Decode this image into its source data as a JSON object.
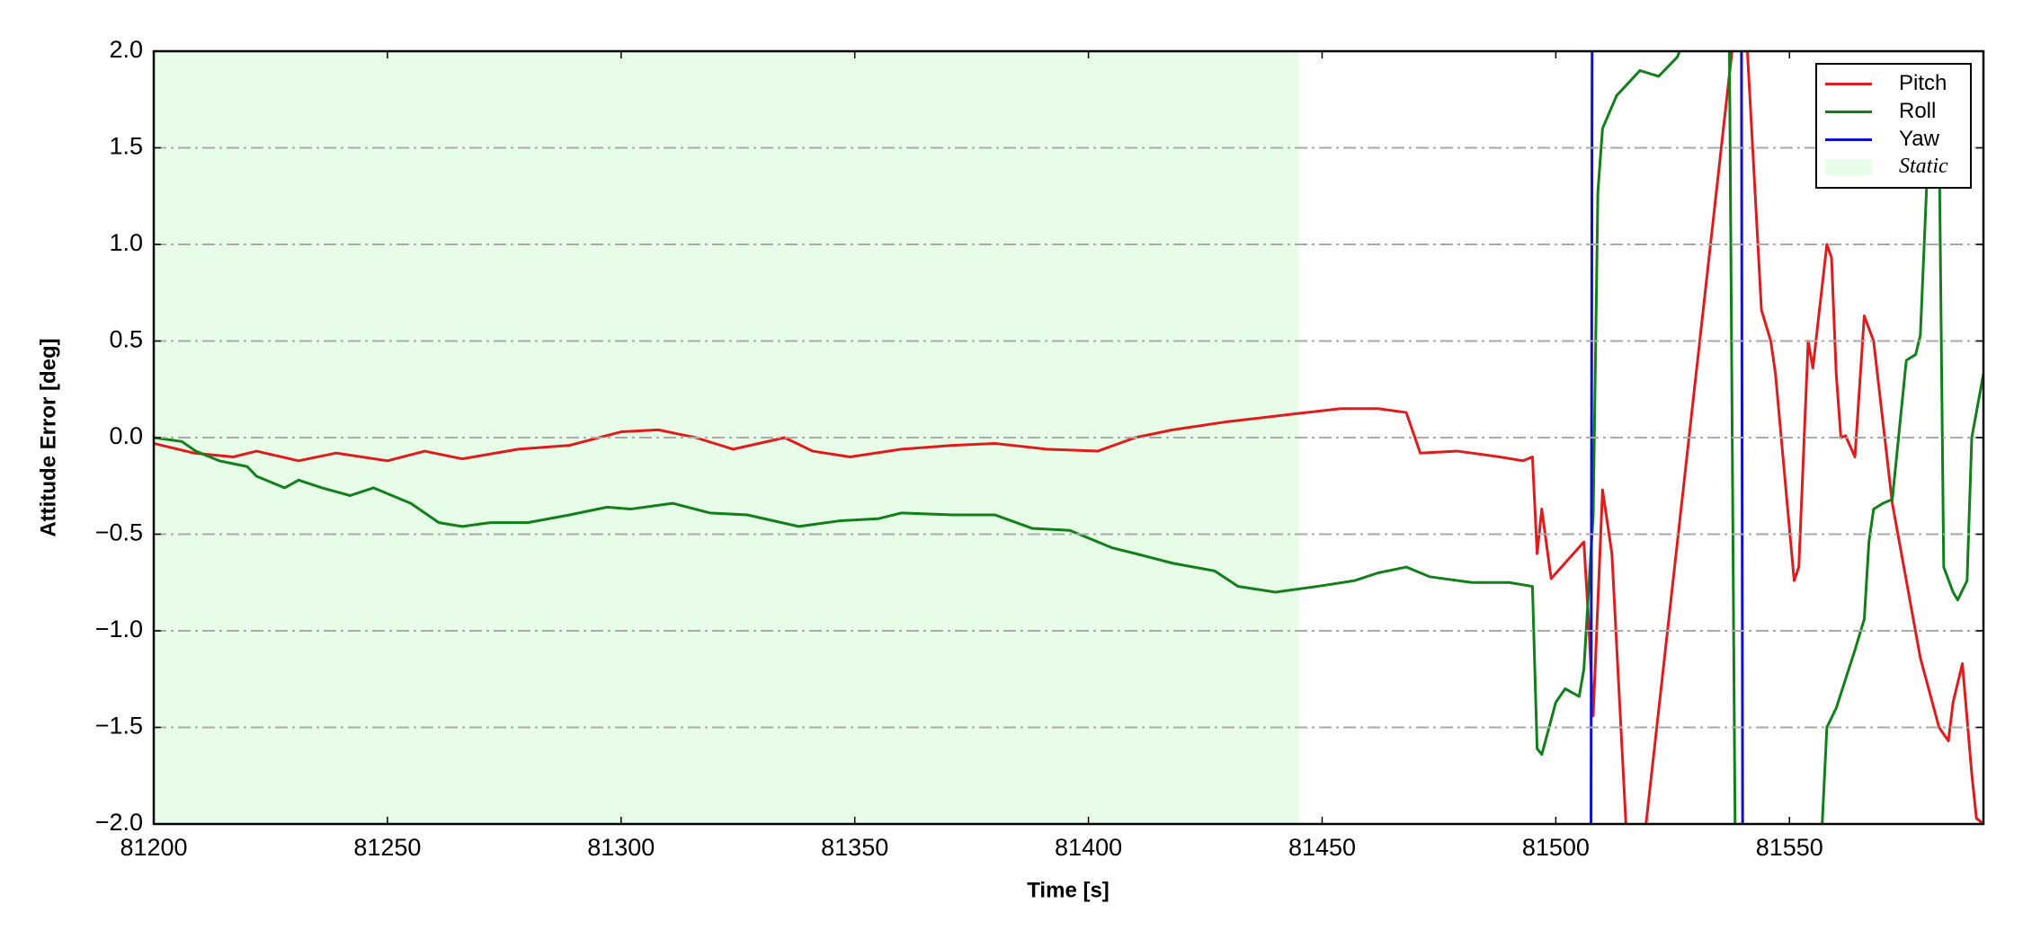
{
  "chart_data": {
    "type": "line",
    "xlabel": "Time [s]",
    "ylabel": "Attitude Error [deg]",
    "xlim": [
      81200,
      81591.5
    ],
    "ylim": [
      -2.0,
      2.0
    ],
    "xticks": [
      81200,
      81250,
      81300,
      81350,
      81400,
      81450,
      81500,
      81550
    ],
    "yticks": [
      {
        "value": -2.0,
        "label": "−2.0"
      },
      {
        "value": -1.5,
        "label": "−1.5"
      },
      {
        "value": -1.0,
        "label": "−1.0"
      },
      {
        "value": -0.5,
        "label": "−0.5"
      },
      {
        "value": 0.0,
        "label": "0.0"
      },
      {
        "value": 0.5,
        "label": "0.5"
      },
      {
        "value": 1.0,
        "label": "1.0"
      },
      {
        "value": 1.5,
        "label": "1.5"
      },
      {
        "value": 2.0,
        "label": "2.0"
      }
    ],
    "grid": true,
    "legend": "upper right",
    "spans": [
      {
        "name": "Static",
        "xlim": [
          81200,
          81445
        ],
        "color": "#e8fde8"
      }
    ],
    "series": [
      {
        "name": "Pitch",
        "color": "#e31a1c",
        "x": [
          81200,
          81208.6,
          81217,
          81222,
          81231,
          81239,
          81250,
          81258,
          81266,
          81278,
          81289,
          81300,
          81308,
          81316,
          81324,
          81335,
          81341,
          81349,
          81360,
          81371,
          81380,
          81391,
          81402,
          81410,
          81418,
          81429,
          81443,
          81454,
          81462,
          81468,
          81471,
          81479,
          81488,
          81493,
          81495,
          81496,
          81497,
          81499,
          81506,
          81507,
          81508,
          81510,
          81512,
          81515,
          81517,
          81540,
          81541,
          81544,
          81546,
          81547,
          81551,
          81552,
          81554,
          81555,
          81558,
          81559,
          81560,
          81561,
          81562,
          81564,
          81566,
          81568,
          81572,
          81578,
          81582,
          81584,
          81585,
          81587,
          81589,
          81590,
          81591.5
        ],
        "values": [
          -0.03,
          -0.08,
          -0.1,
          -0.07,
          -0.12,
          -0.08,
          -0.12,
          -0.07,
          -0.11,
          -0.06,
          -0.04,
          0.03,
          0.04,
          0.0,
          -0.06,
          0.0,
          -0.07,
          -0.1,
          -0.06,
          -0.04,
          -0.03,
          -0.06,
          -0.07,
          0.0,
          0.04,
          0.08,
          0.12,
          0.15,
          0.15,
          0.13,
          -0.08,
          -0.07,
          -0.1,
          -0.12,
          -0.1,
          -0.6,
          -0.37,
          -0.73,
          -0.54,
          -0.94,
          -1.44,
          -0.27,
          -0.6,
          -2.0,
          -2.5,
          2.5,
          2.0,
          0.66,
          0.5,
          0.33,
          -0.74,
          -0.67,
          0.5,
          0.36,
          1.0,
          0.93,
          0.33,
          0.0,
          0.01,
          -0.1,
          0.63,
          0.5,
          -0.34,
          -1.14,
          -1.5,
          -1.57,
          -1.37,
          -1.17,
          -1.74,
          -1.97,
          -2.0
        ]
      },
      {
        "name": "Roll",
        "color": "#11801a",
        "x": [
          81200,
          81206,
          81209,
          81214,
          81220,
          81222,
          81228,
          81231,
          81236,
          81242,
          81247,
          81255,
          81261,
          81266,
          81272,
          81280,
          81289,
          81297,
          81302,
          81311,
          81319,
          81327,
          81338,
          81347,
          81355,
          81360,
          81371,
          81380,
          81388,
          81396,
          81405,
          81410,
          81418,
          81427,
          81432,
          81440,
          81449,
          81457,
          81462,
          81468,
          81473,
          81482,
          81490,
          81495,
          81496,
          81497,
          81500,
          81502,
          81505,
          81506,
          81508,
          81509,
          81510,
          81513,
          81518,
          81522,
          81526,
          81527,
          81529,
          81537,
          81538.5,
          81556,
          81557,
          81558,
          81560,
          81564,
          81566,
          81567,
          81568,
          81570,
          81572,
          81575,
          81577,
          81578,
          81580,
          81582,
          81583,
          81585,
          81586,
          81588,
          81589,
          81591.5
        ],
        "values": [
          0.0,
          -0.02,
          -0.07,
          -0.12,
          -0.15,
          -0.2,
          -0.26,
          -0.22,
          -0.26,
          -0.3,
          -0.26,
          -0.34,
          -0.44,
          -0.46,
          -0.44,
          -0.44,
          -0.4,
          -0.36,
          -0.37,
          -0.34,
          -0.39,
          -0.4,
          -0.46,
          -0.43,
          -0.42,
          -0.39,
          -0.4,
          -0.4,
          -0.47,
          -0.48,
          -0.57,
          -0.6,
          -0.65,
          -0.69,
          -0.77,
          -0.8,
          -0.77,
          -0.74,
          -0.7,
          -0.67,
          -0.72,
          -0.75,
          -0.75,
          -0.77,
          -1.61,
          -1.64,
          -1.37,
          -1.3,
          -1.34,
          -1.2,
          -0.4,
          1.27,
          1.6,
          1.77,
          1.9,
          1.87,
          1.97,
          2.03,
          2.1,
          2.5,
          -2.5,
          -2.5,
          -2.0,
          -1.5,
          -1.4,
          -1.1,
          -0.94,
          -0.54,
          -0.37,
          -0.34,
          -0.32,
          0.4,
          0.43,
          0.53,
          1.67,
          1.6,
          -0.67,
          -0.8,
          -0.84,
          -0.74,
          0.0,
          0.33
        ]
      },
      {
        "name": "Yaw",
        "color": "#1010d0",
        "x": [
          81507.5,
          81507.8,
          81539.7,
          81540
        ],
        "values": [
          -2.5,
          2.5,
          2.5,
          -2.5
        ]
      }
    ]
  }
}
